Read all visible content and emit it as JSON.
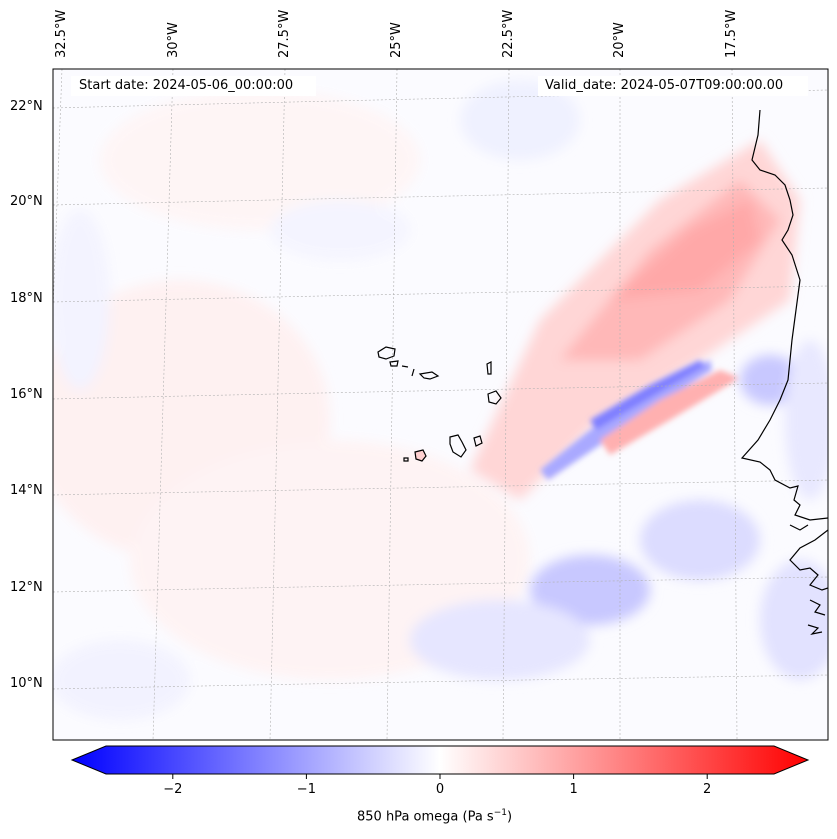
{
  "map": {
    "field": "850 hPa omega",
    "units": "Pa s⁻¹",
    "start_date_label": "Start date: 2024-05-06_00:00:00",
    "valid_date_label": "Valid_date: 2024-05-07T09:00:00.00",
    "lon_labels": [
      "32.5°W",
      "30°W",
      "27.5°W",
      "25°W",
      "22.5°W",
      "20°W",
      "17.5°W"
    ],
    "lat_labels": [
      "22°N",
      "20°N",
      "18°N",
      "16°N",
      "14°N",
      "12°N",
      "10°N"
    ],
    "colors": {
      "negative": "#0000ff",
      "neutral": "#ffffff",
      "positive": "#ff0000",
      "coastline": "#000000",
      "grid": "#b0b0b0"
    }
  },
  "colorbar": {
    "label_prefix": "850 hPa omega (Pa s",
    "label_exp": "−1",
    "label_suffix": ")",
    "ticks": [
      "−2",
      "−1",
      "0",
      "1",
      "2"
    ],
    "tick_values": [
      -2,
      -1,
      0,
      1,
      2
    ],
    "vmin": -2.5,
    "vmax": 2.5,
    "extend": "both"
  }
}
